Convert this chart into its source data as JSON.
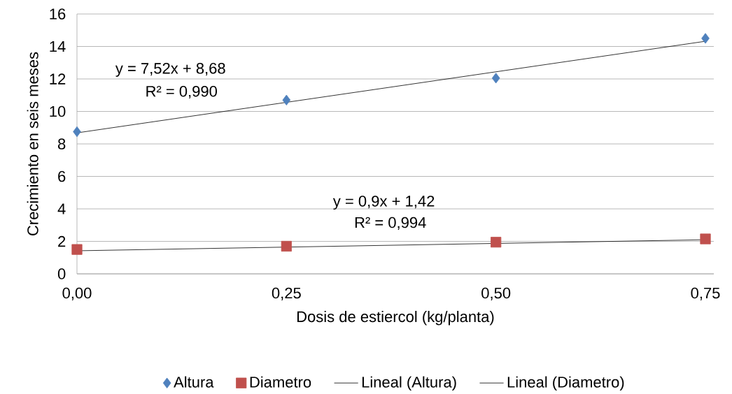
{
  "chart_data": {
    "type": "scatter",
    "xlabel": "Dosis de estiercol (kg/planta)",
    "ylabel": "Crecimiento en seis meses",
    "xlim": [
      0,
      0.76
    ],
    "xticks": [
      {
        "value": 0,
        "label": "0,00"
      },
      {
        "value": 0.25,
        "label": "0,25"
      },
      {
        "value": 0.5,
        "label": "0,50"
      },
      {
        "value": 0.75,
        "label": "0,75"
      }
    ],
    "ylim": [
      0,
      16
    ],
    "yticks": [
      0,
      2,
      4,
      6,
      8,
      10,
      12,
      14,
      16
    ],
    "grid": "y",
    "legend": "bottom",
    "series": [
      {
        "name": "Altura",
        "marker": "diamond",
        "color": "#4f81bd",
        "x": [
          0,
          0.25,
          0.5,
          0.75
        ],
        "values": [
          8.75,
          10.7,
          12.05,
          14.5
        ]
      },
      {
        "name": "Diametro",
        "marker": "square",
        "color": "#c0504d",
        "x": [
          0,
          0.25,
          0.5,
          0.75
        ],
        "values": [
          1.5,
          1.7,
          1.95,
          2.15
        ]
      },
      {
        "name": "Lineal (Altura)",
        "type": "line",
        "marker": "none",
        "line_style": "solid",
        "color": "#000000",
        "x": [
          0,
          0.75
        ],
        "values": [
          8.68,
          14.32
        ]
      },
      {
        "name": "Lineal (Diametro)",
        "type": "line",
        "marker": "none",
        "line_style": "solid",
        "color": "#000000",
        "x": [
          0,
          0.75
        ],
        "values": [
          1.42,
          2.1
        ]
      }
    ],
    "annotations": [
      "y = 7,52x + 8,68",
      "R² = 0,990",
      "y = 0,9x + 1,42",
      "R² = 0,994"
    ]
  }
}
